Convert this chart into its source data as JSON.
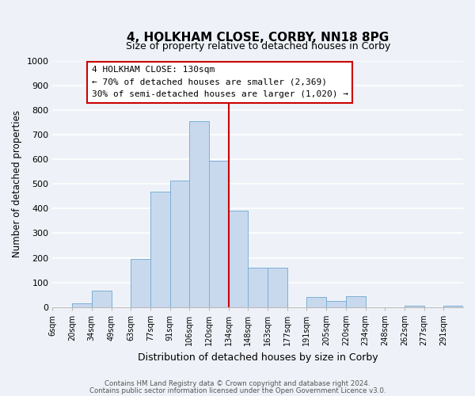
{
  "title": "4, HOLKHAM CLOSE, CORBY, NN18 8PG",
  "subtitle": "Size of property relative to detached houses in Corby",
  "xlabel": "Distribution of detached houses by size in Corby",
  "ylabel": "Number of detached properties",
  "bin_labels": [
    "6sqm",
    "20sqm",
    "34sqm",
    "49sqm",
    "63sqm",
    "77sqm",
    "91sqm",
    "106sqm",
    "120sqm",
    "134sqm",
    "148sqm",
    "163sqm",
    "177sqm",
    "191sqm",
    "205sqm",
    "220sqm",
    "234sqm",
    "248sqm",
    "262sqm",
    "277sqm",
    "291sqm"
  ],
  "bar_heights": [
    0,
    15,
    65,
    0,
    195,
    470,
    515,
    755,
    595,
    390,
    160,
    160,
    0,
    42,
    25,
    45,
    0,
    0,
    5,
    0,
    5
  ],
  "bar_color": "#c8d9ee",
  "bar_edge_color": "#7bafd4",
  "vline_label_idx": 8.857,
  "vline_color": "#cc0000",
  "ylim": [
    0,
    1000
  ],
  "yticks": [
    0,
    100,
    200,
    300,
    400,
    500,
    600,
    700,
    800,
    900,
    1000
  ],
  "annotation_title": "4 HOLKHAM CLOSE: 130sqm",
  "annotation_line1": "← 70% of detached houses are smaller (2,369)",
  "annotation_line2": "30% of semi-detached houses are larger (1,020) →",
  "annotation_box_color": "#ffffff",
  "annotation_box_edge": "#cc0000",
  "footer1": "Contains HM Land Registry data © Crown copyright and database right 2024.",
  "footer2": "Contains public sector information licensed under the Open Government Licence v3.0.",
  "bg_color": "#eef2f8",
  "plot_bg_color": "#eef2f8",
  "grid_color": "#ffffff"
}
